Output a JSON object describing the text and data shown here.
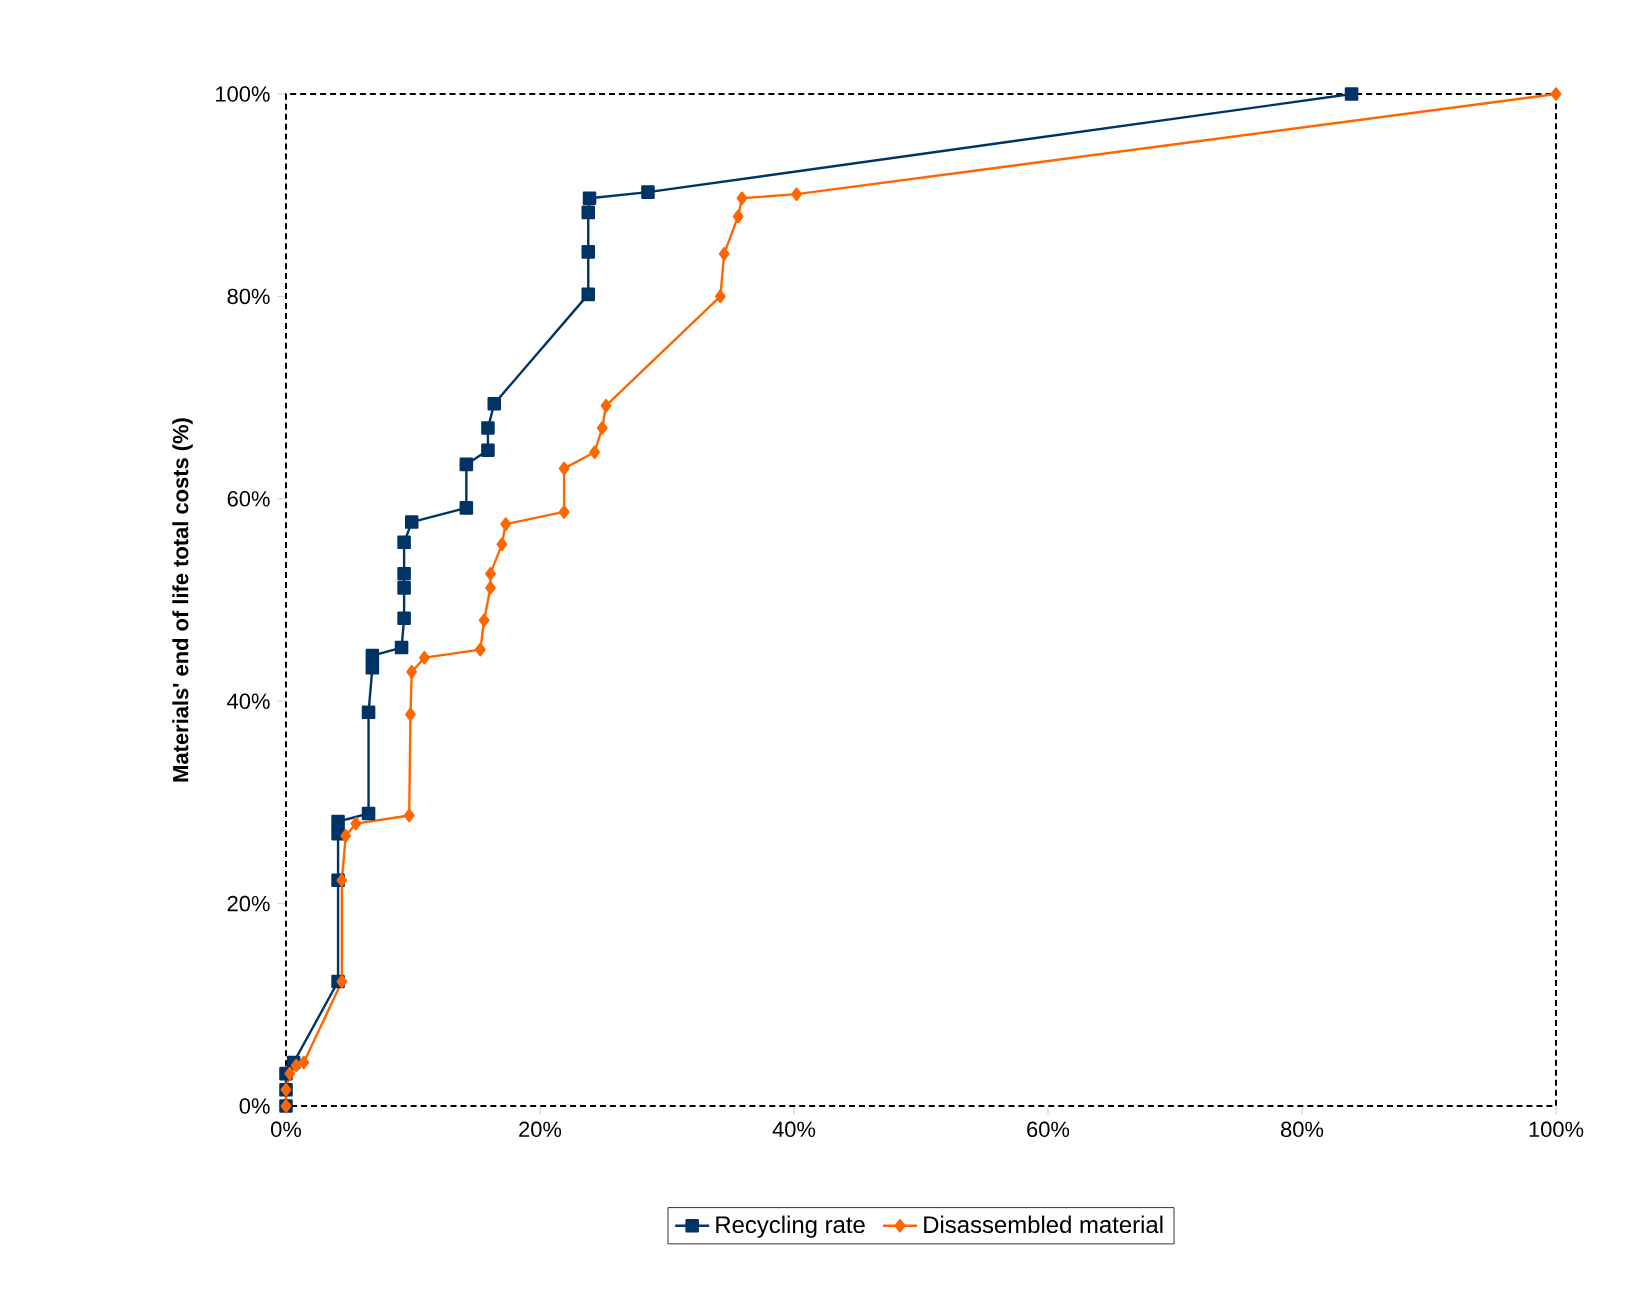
{
  "chart_data": {
    "type": "line",
    "ylabel": "Materials' end of life total costs (%)",
    "xlim": [
      0,
      100
    ],
    "ylim": [
      0,
      100
    ],
    "xticks": [
      {
        "value": 0,
        "label": "0%"
      },
      {
        "value": 20,
        "label": "20%"
      },
      {
        "value": 40,
        "label": "40%"
      },
      {
        "value": 60,
        "label": "60%"
      },
      {
        "value": 80,
        "label": "80%"
      },
      {
        "value": 100,
        "label": "100%"
      }
    ],
    "yticks": [
      {
        "value": 0,
        "label": "0%"
      },
      {
        "value": 20,
        "label": "20%"
      },
      {
        "value": 40,
        "label": "40%"
      },
      {
        "value": 60,
        "label": "60%"
      },
      {
        "value": 80,
        "label": "80%"
      },
      {
        "value": 100,
        "label": "100%"
      }
    ],
    "legend": "bottom",
    "grid": false,
    "line_style": "solid",
    "series": [
      {
        "name": "Recycling rate",
        "color": "#003366",
        "marker": "square",
        "x": [
          0,
          0,
          0,
          0.6,
          4.1,
          4.1,
          4.1,
          4.1,
          6.5,
          6.5,
          6.8,
          6.8,
          9.1,
          9.3,
          9.3,
          9.3,
          9.3,
          9.9,
          14.2,
          14.2,
          15.9,
          15.9,
          16.4,
          23.8,
          23.8,
          23.8,
          23.9,
          28.5,
          83.9
        ],
        "values": [
          0,
          1.6,
          3.2,
          4.3,
          12.3,
          22.3,
          26.9,
          28.1,
          28.9,
          38.9,
          43.3,
          44.5,
          45.3,
          48.2,
          51.2,
          52.6,
          55.7,
          57.7,
          59.1,
          63.4,
          64.8,
          67.0,
          69.4,
          80.2,
          84.4,
          88.3,
          89.7,
          90.3,
          100
        ]
      },
      {
        "name": "Disassembled material",
        "color": "#ff6600",
        "marker": "diamond",
        "x": [
          0,
          0,
          0.3,
          0.8,
          1.4,
          4.4,
          4.4,
          4.7,
          5.5,
          9.7,
          9.8,
          9.9,
          10.9,
          15.3,
          15.6,
          16.1,
          16.1,
          17.0,
          17.3,
          21.9,
          21.9,
          24.3,
          24.9,
          25.2,
          34.2,
          34.5,
          35.6,
          35.9,
          40.2,
          100
        ],
        "values": [
          0,
          1.6,
          3.2,
          4.0,
          4.3,
          12.3,
          22.3,
          26.7,
          27.9,
          28.7,
          38.7,
          42.9,
          44.3,
          45.1,
          48.0,
          51.2,
          52.6,
          55.5,
          57.5,
          58.7,
          63.0,
          64.6,
          67.0,
          69.2,
          80.0,
          84.2,
          87.9,
          89.7,
          90.1,
          100
        ]
      }
    ]
  }
}
